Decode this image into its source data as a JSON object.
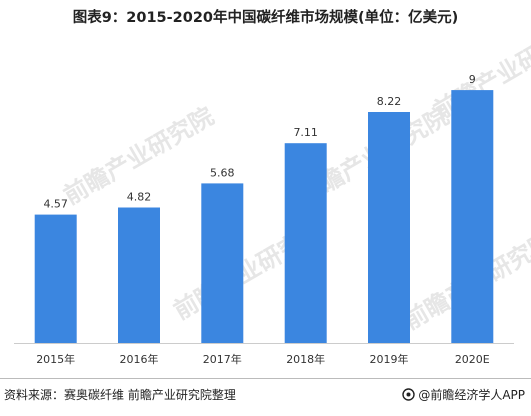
{
  "chart_data": {
    "type": "bar",
    "title": "图表9：2015-2020年中国碳纤维市场规模(单位：亿美元)",
    "categories": [
      "2015年",
      "2016年",
      "2017年",
      "2018年",
      "2019年",
      "2020E"
    ],
    "values": [
      4.57,
      4.82,
      5.68,
      7.11,
      8.22,
      9
    ],
    "value_labels": [
      "4.57",
      "4.82",
      "5.68",
      "7.11",
      "8.22",
      "9"
    ],
    "xlabel": "",
    "ylabel": "",
    "ylim": [
      0,
      9.5
    ],
    "grid": false,
    "legend": "none",
    "bar_color": "#3b86e0"
  },
  "footer": {
    "source": "资料来源：赛奥碳纤维 前瞻产业研究院整理",
    "credit": "@前瞻经济学人APP"
  },
  "watermark": "前瞻产业研究院",
  "colors": {
    "bar": "#3b86e0",
    "watermark": "#e6e6e6"
  }
}
